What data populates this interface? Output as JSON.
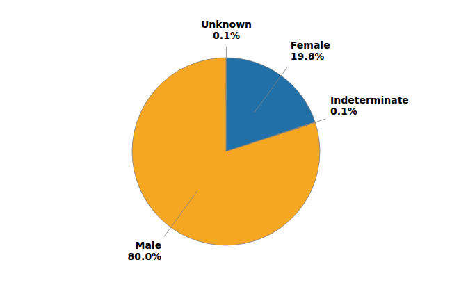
{
  "chart_data": {
    "type": "pie",
    "categories": [
      "Unknown",
      "Female",
      "Indeterminate",
      "Male"
    ],
    "values": [
      0.1,
      19.8,
      0.1,
      80.0
    ],
    "value_labels": [
      "0.1%",
      "19.8%",
      "0.1%",
      "80.0%"
    ],
    "colors": [
      "#F5A623",
      "#2170A8",
      "#F5A623",
      "#F5A623"
    ],
    "data_labels": true
  }
}
